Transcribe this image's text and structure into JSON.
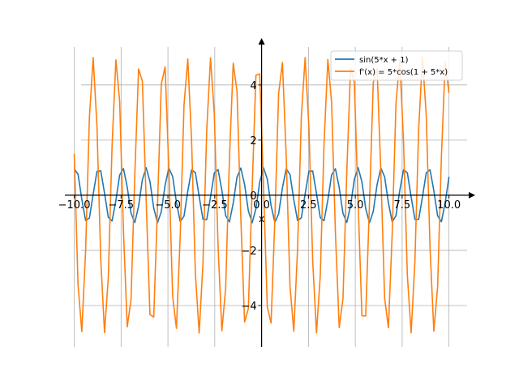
{
  "chart_data": {
    "type": "line",
    "title": "",
    "xlabel": "x",
    "ylabel": "",
    "xlim": [
      -10.5,
      11.4
    ],
    "ylim": [
      -5.5,
      5.7
    ],
    "grid": true,
    "legend_position": "top-right",
    "x_ticks": [
      -10,
      -7.5,
      -5,
      -2.5,
      0,
      2.5,
      5,
      7.5,
      10
    ],
    "x_tick_labels": [
      "−10.0",
      "−7.5",
      "−5.0",
      "−2.5",
      "0.0",
      "2.5",
      "5.0",
      "7.5",
      "10.0"
    ],
    "y_ticks": [
      -4,
      -2,
      0,
      2,
      4
    ],
    "y_tick_labels": [
      "−4",
      "−2",
      "0",
      "2",
      "4"
    ],
    "sample_count": 100,
    "x_range": [
      -10,
      10
    ],
    "series": [
      {
        "name": "sin(5*x + 1)",
        "expression": "sin(5*x + 1)",
        "color": "#1f77b4"
      },
      {
        "name": "f'(x) = 5*cos(1 + 5*x)",
        "expression": "5*cos(1 + 5*x)",
        "color": "#ff7f0e"
      }
    ]
  }
}
